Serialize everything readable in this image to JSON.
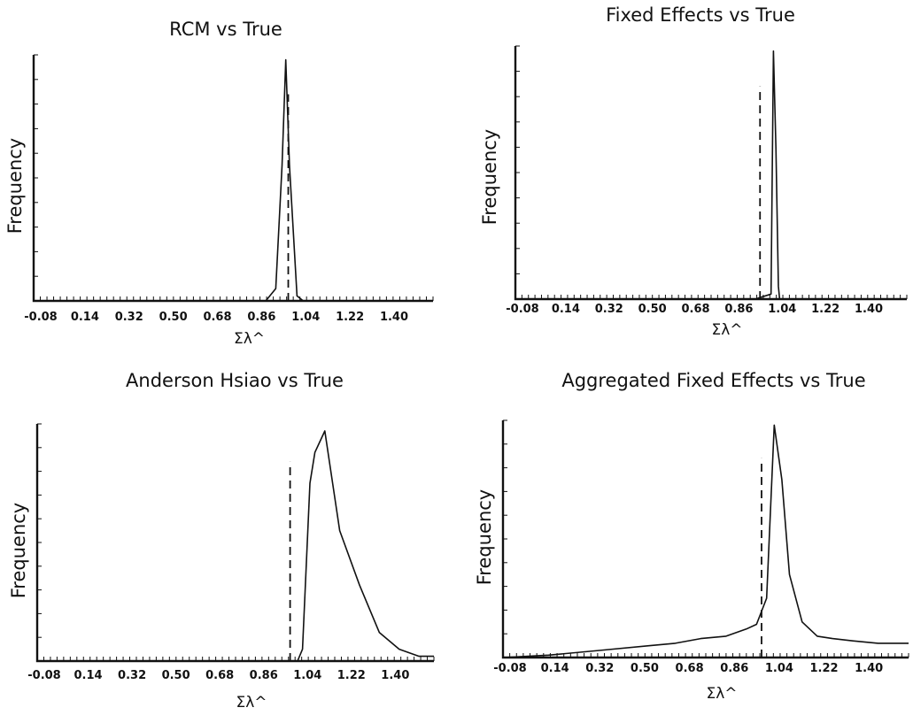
{
  "chart_data": [
    {
      "type": "line",
      "title": "RCM vs True",
      "xlabel": "Σλ^",
      "ylabel": "Frequency",
      "xticklabels": [
        "-0.08",
        "0.14",
        "0.32",
        "0.50",
        "0.68",
        "0.86",
        "1.04",
        "1.22",
        "1.40"
      ],
      "xlim": [
        -0.08,
        1.52
      ],
      "ylim": [
        0,
        1
      ],
      "true_value": 0.94,
      "x": [
        0.85,
        0.89,
        0.915,
        0.93,
        0.945,
        0.975,
        1.0,
        1.2,
        1.52
      ],
      "y": [
        0.0,
        0.05,
        0.55,
        0.98,
        0.55,
        0.02,
        0.0,
        0.0,
        0.0
      ]
    },
    {
      "type": "line",
      "title": "Fixed Effects vs True",
      "xlabel": "Σλ^",
      "ylabel": "Frequency",
      "xticklabels": [
        "-0.08",
        "0.14",
        "0.32",
        "0.50",
        "0.68",
        "0.86",
        "1.04",
        "1.22",
        "1.40"
      ],
      "xlim": [
        -0.08,
        1.52
      ],
      "ylim": [
        0,
        1
      ],
      "true_value": 0.92,
      "x": [
        -0.08,
        0.9,
        0.965,
        0.975,
        0.985,
        0.995,
        1.0,
        1.05,
        1.52
      ],
      "y": [
        0.0,
        0.0,
        0.02,
        0.98,
        0.6,
        0.05,
        0.0,
        0.0,
        0.0
      ]
    },
    {
      "type": "line",
      "title": "Anderson Hsiao vs True",
      "xlabel": "Σλ^",
      "ylabel": "Frequency",
      "xticklabels": [
        "-0.08",
        "0.14",
        "0.32",
        "0.50",
        "0.68",
        "0.86",
        "1.04",
        "1.22",
        "1.40"
      ],
      "xlim": [
        -0.08,
        1.52
      ],
      "ylim": [
        0,
        1
      ],
      "true_value": 0.94,
      "x": [
        -0.08,
        0.97,
        0.99,
        1.02,
        1.04,
        1.08,
        1.14,
        1.22,
        1.3,
        1.38,
        1.46,
        1.52
      ],
      "y": [
        0.0,
        0.0,
        0.05,
        0.75,
        0.88,
        0.97,
        0.55,
        0.32,
        0.12,
        0.05,
        0.02,
        0.02
      ]
    },
    {
      "type": "line",
      "title": "Aggregated Fixed Effects vs True",
      "xlabel": "Σλ^",
      "ylabel": "Frequency",
      "xticklabels": [
        "-0.08",
        "0.14",
        "0.32",
        "0.50",
        "0.68",
        "0.86",
        "1.04",
        "1.22",
        "1.40"
      ],
      "xlim": [
        -0.08,
        1.52
      ],
      "ylim": [
        0,
        1
      ],
      "true_value": 0.94,
      "x": [
        -0.08,
        0.1,
        0.3,
        0.5,
        0.6,
        0.7,
        0.8,
        0.88,
        0.92,
        0.96,
        0.99,
        1.02,
        1.05,
        1.1,
        1.16,
        1.22,
        1.3,
        1.4,
        1.52
      ],
      "y": [
        0.0,
        0.01,
        0.03,
        0.05,
        0.06,
        0.08,
        0.09,
        0.12,
        0.14,
        0.25,
        0.98,
        0.75,
        0.35,
        0.15,
        0.09,
        0.08,
        0.07,
        0.06,
        0.06
      ]
    }
  ]
}
